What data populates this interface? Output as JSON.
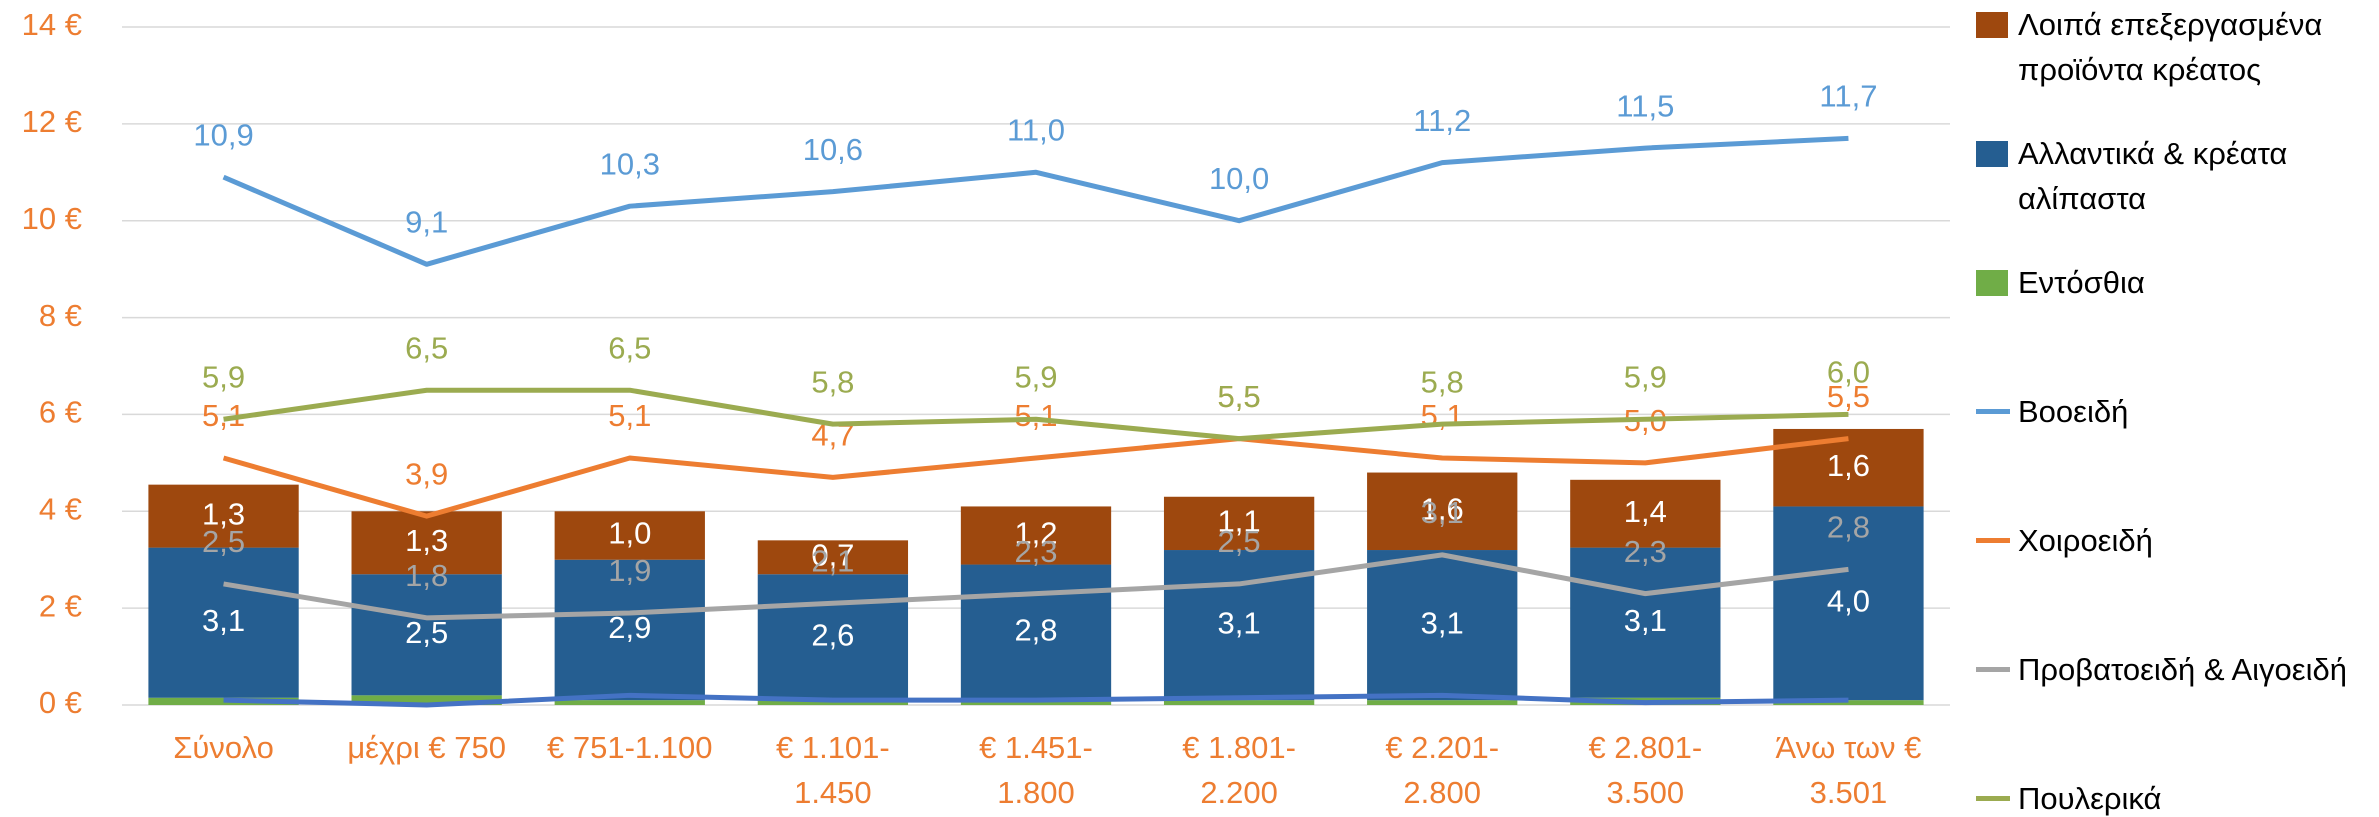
{
  "chart_data": {
    "type": "combo",
    "categories": [
      "Σύνολο",
      "μέχρι € 750",
      "€ 751-1.100",
      "€ 1.101-1.450",
      "€ 1.451-1.800",
      "€ 1.801-2.200",
      "€ 2.201-2.800",
      "€ 2.801-3.500",
      "Άνω των € 3.501"
    ],
    "ylim": [
      0,
      14
    ],
    "yticks": [
      {
        "value": 0,
        "label": "0 €"
      },
      {
        "value": 2,
        "label": "2 €"
      },
      {
        "value": 4,
        "label": "4 €"
      },
      {
        "value": 6,
        "label": "6 €"
      },
      {
        "value": 8,
        "label": "8 €"
      },
      {
        "value": 10,
        "label": "10 €"
      },
      {
        "value": 12,
        "label": "12 €"
      },
      {
        "value": 14,
        "label": "14 €"
      }
    ],
    "grid": true,
    "legend": "right",
    "series": [
      {
        "name": "Λοιπά επεξεργασμένα προϊόντα κρέατος",
        "kind": "bar",
        "color": "#9e480e",
        "values": [
          1.3,
          1.3,
          1.0,
          0.7,
          1.2,
          1.1,
          1.6,
          1.4,
          1.6
        ],
        "value_labels": [
          "1,3",
          "1,3",
          "1,0",
          "0,7",
          "1,2",
          "1,1",
          "1,6",
          "1,4",
          "1,6"
        ]
      },
      {
        "name": "Αλλαντικά & κρέατα αλίπαστα",
        "kind": "bar",
        "color": "#255e91",
        "values": [
          3.1,
          2.5,
          2.9,
          2.6,
          2.8,
          3.1,
          3.1,
          3.1,
          4.0
        ],
        "value_labels": [
          "3,1",
          "2,5",
          "2,9",
          "2,6",
          "2,8",
          "3,1",
          "3,1",
          "3,1",
          "4,0"
        ]
      },
      {
        "name": "Εντόσθια",
        "kind": "bar",
        "color": "#70ad47",
        "values": [
          0.15,
          0.2,
          0.1,
          0.1,
          0.1,
          0.1,
          0.1,
          0.15,
          0.1
        ]
      },
      {
        "name": "Βοοειδή",
        "kind": "line",
        "color": "#5b9bd5",
        "values": [
          10.9,
          9.1,
          10.3,
          10.6,
          11.0,
          10.0,
          11.2,
          11.5,
          11.7
        ],
        "value_labels": [
          "10,9",
          "9,1",
          "10,3",
          "10,6",
          "11,0",
          "10,0",
          "11,2",
          "11,5",
          "11,7"
        ]
      },
      {
        "name": "Χοιροειδή",
        "kind": "line",
        "color": "#ed7d31",
        "values": [
          5.1,
          3.9,
          5.1,
          4.7,
          5.1,
          5.5,
          5.1,
          5.0,
          5.5
        ],
        "value_labels": [
          "5,1",
          "3,9",
          "5,1",
          "4,7",
          "5,1",
          "5,5",
          "5,1",
          "5,0",
          "5,5"
        ]
      },
      {
        "name": "Προβατοειδή & Αιγοειδή",
        "kind": "line",
        "color": "#a5a5a5",
        "values": [
          2.5,
          1.8,
          1.9,
          2.1,
          2.3,
          2.5,
          3.1,
          2.3,
          2.8
        ],
        "value_labels": [
          "2,5",
          "1,8",
          "1,9",
          "2,1",
          "2,3",
          "2,5",
          "3,1",
          "2,3",
          "2,8"
        ]
      },
      {
        "name": "Πουλερικά",
        "kind": "line",
        "color": "#9bab50",
        "values": [
          5.9,
          6.5,
          6.5,
          5.8,
          5.9,
          5.5,
          5.8,
          5.9,
          6.0
        ],
        "value_labels": [
          "5,9",
          "6,5",
          "6,5",
          "5,8",
          "5,9",
          "5,5",
          "5,8",
          "5,9",
          "6,0"
        ]
      },
      {
        "kind": "line",
        "color": "#4472c4",
        "values": [
          0.1,
          0.0,
          0.2,
          0.1,
          0.1,
          0.15,
          0.2,
          0.05,
          0.1
        ]
      }
    ]
  }
}
